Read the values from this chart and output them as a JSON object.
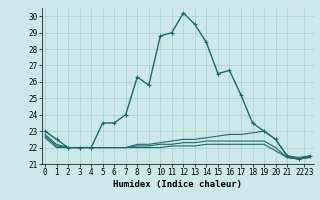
{
  "xlabel": "Humidex (Indice chaleur)",
  "background_color": "#cce8e8",
  "grid_color": "#aacfcf",
  "line_color": "#1a6b6b",
  "series": [
    {
      "x": [
        0,
        1,
        2,
        3,
        4,
        5,
        6,
        7,
        8,
        9,
        10,
        11,
        12,
        13,
        14,
        15,
        16,
        17,
        18,
        19,
        20,
        21,
        22,
        23
      ],
      "y": [
        23.0,
        22.5,
        22.0,
        22.0,
        22.0,
        23.5,
        23.5,
        24.0,
        26.3,
        25.8,
        28.8,
        29.0,
        30.2,
        29.5,
        28.4,
        26.5,
        26.7,
        25.2,
        23.5,
        23.0,
        22.5,
        21.5,
        21.3,
        21.5
      ],
      "marker": true,
      "lw": 1.0
    },
    {
      "x": [
        0,
        1,
        2,
        3,
        4,
        5,
        6,
        7,
        8,
        9,
        10,
        11,
        12,
        13,
        14,
        15,
        16,
        17,
        18,
        19,
        20,
        21,
        22,
        23
      ],
      "y": [
        22.8,
        22.2,
        22.0,
        22.0,
        22.0,
        22.0,
        22.0,
        22.0,
        22.2,
        22.2,
        22.3,
        22.4,
        22.5,
        22.5,
        22.6,
        22.7,
        22.8,
        22.8,
        22.9,
        23.0,
        22.5,
        21.5,
        21.4,
        21.5
      ],
      "marker": false,
      "lw": 0.8
    },
    {
      "x": [
        0,
        1,
        2,
        3,
        4,
        5,
        6,
        7,
        8,
        9,
        10,
        11,
        12,
        13,
        14,
        15,
        16,
        17,
        18,
        19,
        20,
        21,
        22,
        23
      ],
      "y": [
        22.7,
        22.1,
        22.0,
        22.0,
        22.0,
        22.0,
        22.0,
        22.0,
        22.1,
        22.1,
        22.2,
        22.2,
        22.3,
        22.3,
        22.4,
        22.4,
        22.4,
        22.4,
        22.4,
        22.4,
        22.0,
        21.4,
        21.3,
        21.4
      ],
      "marker": false,
      "lw": 0.8
    },
    {
      "x": [
        0,
        1,
        2,
        3,
        4,
        5,
        6,
        7,
        8,
        9,
        10,
        11,
        12,
        13,
        14,
        15,
        16,
        17,
        18,
        19,
        20,
        21,
        22,
        23
      ],
      "y": [
        22.6,
        22.0,
        22.0,
        22.0,
        22.0,
        22.0,
        22.0,
        22.0,
        22.0,
        22.0,
        22.0,
        22.1,
        22.1,
        22.1,
        22.2,
        22.2,
        22.2,
        22.2,
        22.2,
        22.2,
        21.8,
        21.4,
        21.3,
        21.4
      ],
      "marker": false,
      "lw": 0.8
    }
  ],
  "xlim": [
    -0.3,
    23.3
  ],
  "ylim": [
    21.0,
    30.5
  ],
  "yticks": [
    21,
    22,
    23,
    24,
    25,
    26,
    27,
    28,
    29,
    30
  ],
  "ytick_labels": [
    "21",
    "22",
    "23",
    "24",
    "25",
    "26",
    "27",
    "28",
    "29",
    "30"
  ],
  "xtick_positions": [
    0,
    1,
    2,
    3,
    4,
    5,
    6,
    7,
    8,
    9,
    10,
    11,
    12,
    13,
    14,
    15,
    16,
    17,
    18,
    19,
    20,
    21,
    22.5
  ],
  "xtick_labels": [
    "0",
    "1",
    "2",
    "3",
    "4",
    "5",
    "6",
    "7",
    "8",
    "9",
    "10",
    "11",
    "12",
    "13",
    "14",
    "15",
    "16",
    "17",
    "18",
    "19",
    "20",
    "21",
    "2223"
  ],
  "tick_fontsize": 5.5,
  "xlabel_fontsize": 6.5
}
